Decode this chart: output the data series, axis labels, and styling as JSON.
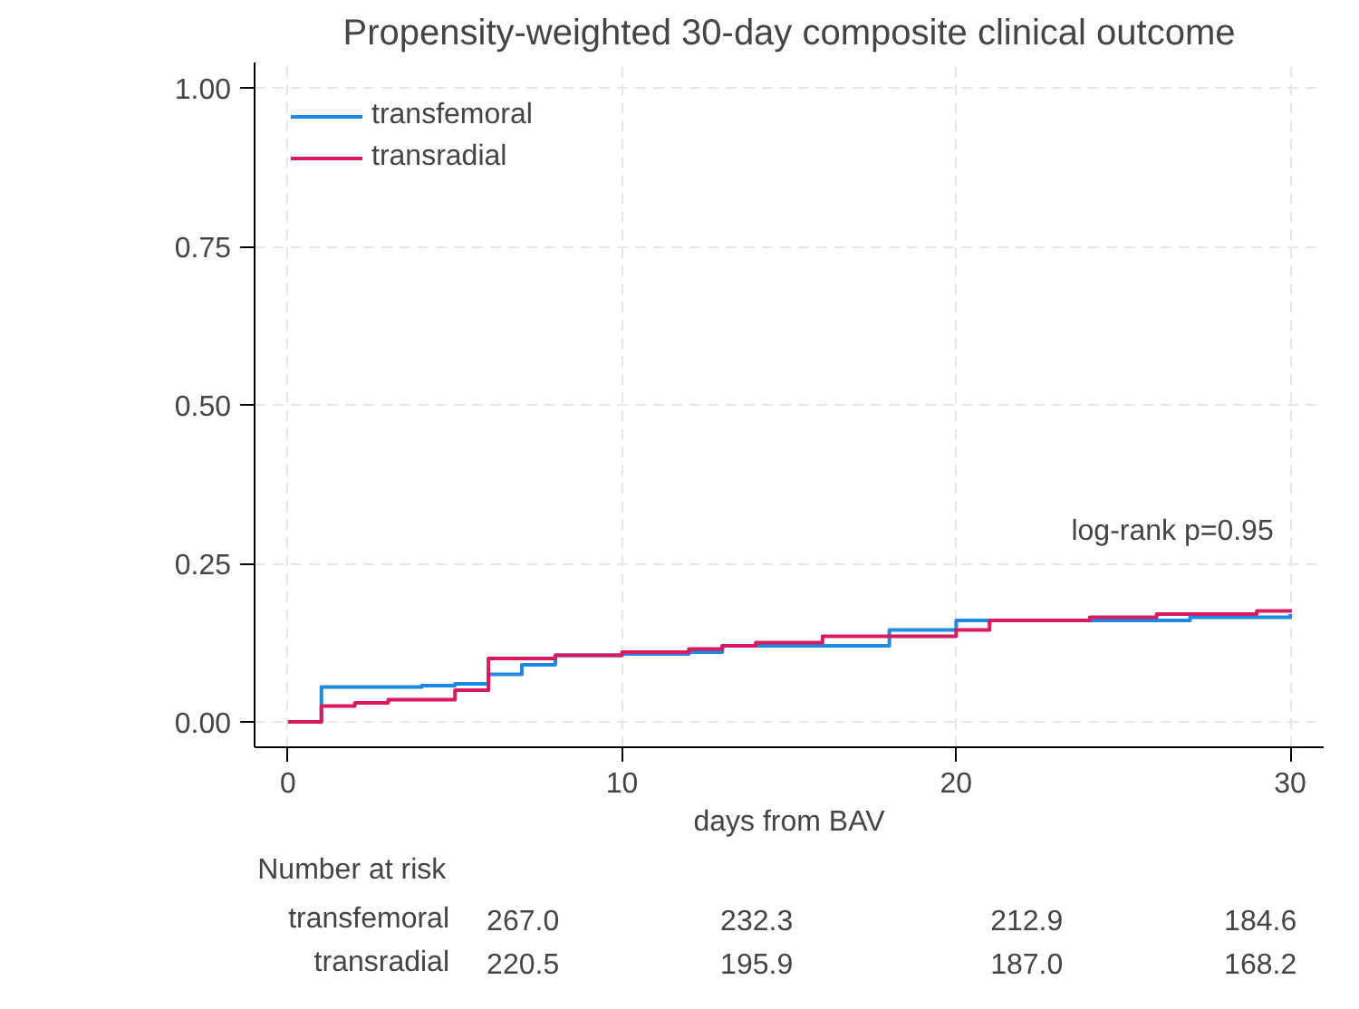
{
  "chart_data": {
    "type": "step",
    "title": "Propensity-weighted 30-day composite clinical outcome",
    "xlabel": "days from BAV",
    "series": [
      {
        "name": "transfemoral",
        "color": "#1e88e5",
        "x": [
          0,
          1,
          4,
          5,
          6,
          7,
          8,
          10,
          12,
          13,
          16,
          18,
          20,
          27,
          30
        ],
        "values": [
          0,
          0.055,
          0.057,
          0.06,
          0.075,
          0.09,
          0.105,
          0.107,
          0.11,
          0.12,
          0.12,
          0.145,
          0.16,
          0.165,
          0.17
        ]
      },
      {
        "name": "transradial",
        "color": "#d81b60",
        "x": [
          0,
          1,
          2,
          3,
          5,
          6,
          8,
          10,
          12,
          13,
          14,
          16,
          20,
          21,
          24,
          26,
          29,
          30
        ],
        "values": [
          0,
          0.025,
          0.03,
          0.035,
          0.05,
          0.1,
          0.105,
          0.11,
          0.115,
          0.12,
          0.125,
          0.135,
          0.145,
          0.16,
          0.165,
          0.17,
          0.175,
          0.178
        ]
      }
    ],
    "xlim": [
      -1,
      31
    ],
    "xticks": [
      0,
      10,
      20,
      30
    ],
    "ylim": [
      -0.04,
      1.04
    ],
    "yticks": [
      {
        "value": 0,
        "label": "0.00"
      },
      {
        "value": 0.25,
        "label": "0.25"
      },
      {
        "value": 0.5,
        "label": "0.50"
      },
      {
        "value": 0.75,
        "label": "0.75"
      },
      {
        "value": 1,
        "label": "1.00"
      }
    ],
    "grid": true,
    "legend": "top left",
    "annotations": [
      "log-rank p=0.95",
      "Number at risk",
      "transfemoral",
      "267.0",
      "232.3",
      "212.9",
      "184.6",
      "transradial",
      "220.5",
      "195.9",
      "187.0",
      "168.2"
    ]
  }
}
